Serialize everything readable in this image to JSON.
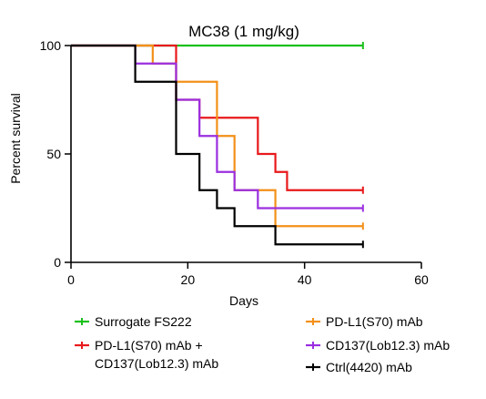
{
  "chart_data": {
    "type": "line",
    "subtype": "kaplan-meier step survival curve",
    "title": "MC38 (1 mg/kg)",
    "xlabel": "Days",
    "ylabel": "Percent survival",
    "xlim": [
      0,
      60
    ],
    "ylim": [
      0,
      100
    ],
    "xticks": [
      "0",
      "20",
      "40",
      "60"
    ],
    "yticks": [
      "0",
      "50",
      "100"
    ],
    "grid": false,
    "legend_position": "bottom",
    "series": [
      {
        "name": "Surrogate FS222",
        "color": "#1bc01b",
        "x": [
          0,
          50
        ],
        "y": [
          100,
          100
        ]
      },
      {
        "name": "PD-L1(S70) mAb +\nCD137(Lob12.3) mAb",
        "color": "#e8191b",
        "x": [
          0,
          18,
          22,
          32,
          35,
          37,
          50
        ],
        "y": [
          100,
          75,
          66.7,
          50,
          41.7,
          33.3,
          33.3
        ]
      },
      {
        "name": "PD-L1(S70) mAb",
        "color": "#f39019",
        "x": [
          0,
          14,
          18,
          25,
          28,
          35,
          50
        ],
        "y": [
          100,
          91.7,
          83.3,
          58.3,
          33.3,
          16.7,
          16.7
        ]
      },
      {
        "name": "CD137(Lob12.3) mAb",
        "color": "#9b2fe0",
        "x": [
          0,
          11,
          18,
          22,
          25,
          28,
          32,
          50
        ],
        "y": [
          100,
          91.7,
          75,
          58.3,
          41.7,
          33.3,
          25,
          25
        ]
      },
      {
        "name": "Ctrl(4420) mAb",
        "color": "#000000",
        "x": [
          0,
          11,
          18,
          22,
          25,
          28,
          35,
          50
        ],
        "y": [
          100,
          83.3,
          50,
          33.3,
          25,
          16.7,
          8.3,
          8.3
        ]
      }
    ],
    "legend_layout": [
      [
        0,
        2
      ],
      [
        1,
        3
      ],
      [
        null,
        4
      ]
    ]
  }
}
